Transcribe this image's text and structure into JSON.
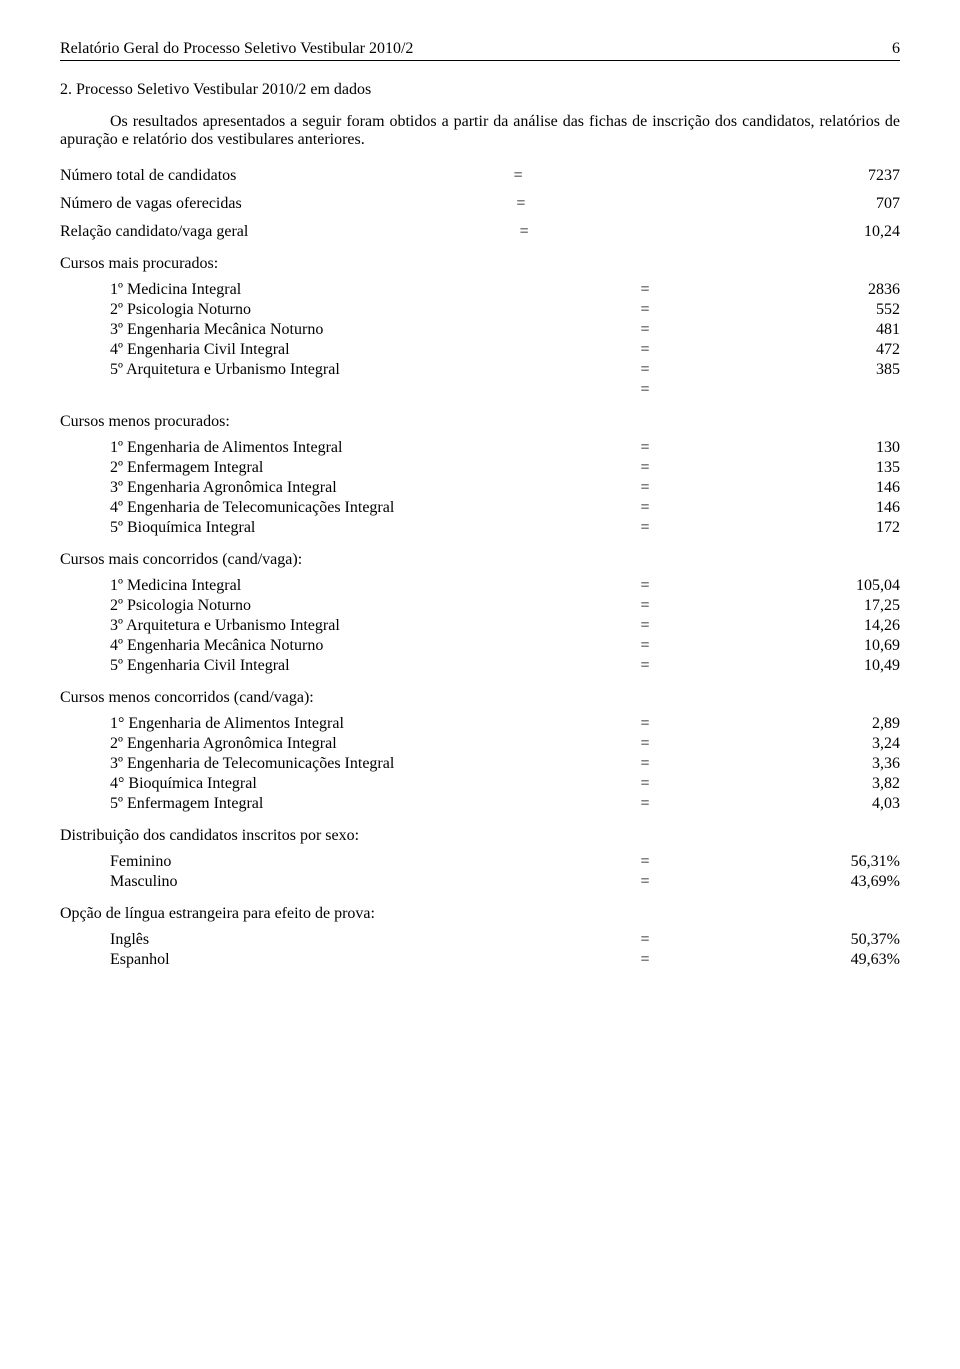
{
  "header": {
    "title": "Relatório Geral do Processo Seletivo Vestibular 2010/2",
    "page_number": "6"
  },
  "section_title": "2. Processo Seletivo Vestibular 2010/2 em dados",
  "intro_text": "Os resultados apresentados a seguir foram obtidos a partir da análise das fichas de inscrição dos candidatos, relatórios de apuração e relatório dos vestibulares anteriores.",
  "top_stats": [
    {
      "label": "Número total de candidatos",
      "eq": "=",
      "value": "7237"
    },
    {
      "label": "Número de vagas oferecidas",
      "eq": "=",
      "value": "707"
    },
    {
      "label": "Relação candidato/vaga geral",
      "eq": "=",
      "value": "10,24"
    }
  ],
  "groups": [
    {
      "heading": "Cursos mais procurados:",
      "heading_indent": false,
      "rows": [
        {
          "label": "1º Medicina Integral",
          "eq": "=",
          "value": "2836"
        },
        {
          "label": "2º Psicologia Noturno",
          "eq": "=",
          "value": "552"
        },
        {
          "label": "3º Engenharia Mecânica Noturno",
          "eq": "=",
          "value": "481"
        },
        {
          "label": "4º Engenharia Civil Integral",
          "eq": "=",
          "value": "472"
        },
        {
          "label": "5º Arquitetura e Urbanismo Integral",
          "eq": "=",
          "value": "385"
        },
        {
          "label": "",
          "eq": "=",
          "value": ""
        }
      ]
    },
    {
      "heading": "Cursos menos procurados:",
      "heading_indent": false,
      "rows": [
        {
          "label": "1º Engenharia de Alimentos Integral",
          "eq": "=",
          "value": "130"
        },
        {
          "label": "2º Enfermagem Integral",
          "eq": "=",
          "value": "135"
        },
        {
          "label": "3º Engenharia Agronômica Integral",
          "eq": "=",
          "value": "146"
        },
        {
          "label": "4º Engenharia de Telecomunicações Integral",
          "eq": "=",
          "value": "146"
        },
        {
          "label": "5º Bioquímica Integral",
          "eq": "=",
          "value": "172"
        }
      ]
    },
    {
      "heading": "Cursos mais concorridos (cand/vaga):",
      "heading_indent": false,
      "rows": [
        {
          "label": "1º Medicina Integral",
          "eq": "=",
          "value": "105,04"
        },
        {
          "label": "2º Psicologia Noturno",
          "eq": "=",
          "value": "17,25"
        },
        {
          "label": "3º Arquitetura e Urbanismo Integral",
          "eq": "=",
          "value": "14,26"
        },
        {
          "label": "4º Engenharia Mecânica Noturno",
          "eq": "=",
          "value": "10,69"
        },
        {
          "label": "5º Engenharia Civil Integral",
          "eq": "=",
          "value": "10,49"
        }
      ]
    },
    {
      "heading": "Cursos menos concorridos (cand/vaga):",
      "heading_indent": false,
      "rows": [
        {
          "label": "1° Engenharia de Alimentos Integral",
          "eq": "=",
          "value": "2,89"
        },
        {
          "label": "2º Engenharia Agronômica Integral",
          "eq": "=",
          "value": "3,24"
        },
        {
          "label": "3º Engenharia de Telecomunicações Integral",
          "eq": "=",
          "value": "3,36"
        },
        {
          "label": "4° Bioquímica Integral",
          "eq": "=",
          "value": "3,82"
        },
        {
          "label": "5º Enfermagem Integral",
          "eq": "=",
          "value": "4,03"
        }
      ]
    },
    {
      "heading": "Distribuição dos candidatos inscritos por sexo:",
      "heading_indent": false,
      "heading_outdent": true,
      "rows": [
        {
          "label": "Feminino",
          "eq": "=",
          "value": "56,31%"
        },
        {
          "label": "Masculino",
          "eq": "=",
          "value": "43,69%"
        }
      ]
    },
    {
      "heading": "Opção de língua estrangeira para efeito de prova:",
      "heading_indent": false,
      "heading_outdent": true,
      "rows": [
        {
          "label": "Inglês",
          "eq": "=",
          "value": "50,37%"
        },
        {
          "label": "Espanhol",
          "eq": "=",
          "value": "49,63%"
        }
      ]
    }
  ]
}
